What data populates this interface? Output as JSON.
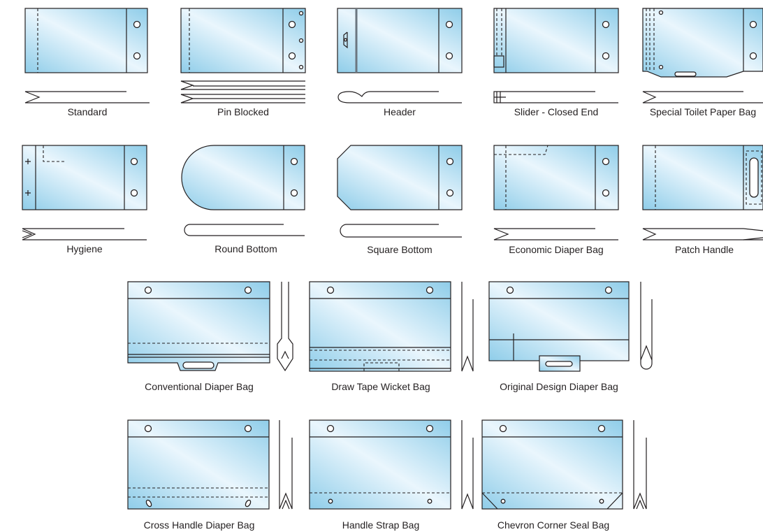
{
  "colors": {
    "film_light": "#eaf6fd",
    "film_dark": "#8fcde9",
    "line": "#231f20"
  },
  "labels": {
    "standard": "Standard",
    "pin_blocked": "Pin Blocked",
    "header": "Header",
    "slider_closed_end": "Slider - Closed End",
    "special_toilet_paper_bag": "Special Toilet Paper Bag",
    "hygiene": "Hygiene",
    "round_bottom": "Round Bottom",
    "square_bottom": "Square Bottom",
    "economic_diaper_bag": "Economic Diaper Bag",
    "patch_handle": "Patch Handle",
    "conventional_diaper_bag": "Conventional Diaper Bag",
    "draw_tape_wicket_bag": "Draw Tape Wicket Bag",
    "original_design_diaper_bag": "Original Design Diaper Bag",
    "cross_handle_diaper_bag": "Cross Handle Diaper Bag",
    "handle_strap_bag": "Handle Strap Bag",
    "chevron_corner_seal_bag": "Chevron Corner Seal Bag"
  }
}
